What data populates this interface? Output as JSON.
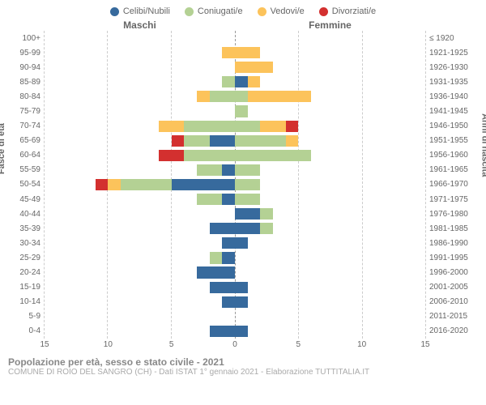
{
  "legend": [
    {
      "label": "Celibi/Nubili",
      "color": "#376a9d"
    },
    {
      "label": "Coniugati/e",
      "color": "#b4d194"
    },
    {
      "label": "Vedovi/e",
      "color": "#fcc35b"
    },
    {
      "label": "Divorziati/e",
      "color": "#d3302f"
    }
  ],
  "header_male": "Maschi",
  "header_female": "Femmine",
  "ylabel_left": "Fasce di età",
  "ylabel_right": "Anni di nascita",
  "age_groups": [
    "100+",
    "95-99",
    "90-94",
    "85-89",
    "80-84",
    "75-79",
    "70-74",
    "65-69",
    "60-64",
    "55-59",
    "50-54",
    "45-49",
    "40-44",
    "35-39",
    "30-34",
    "25-29",
    "20-24",
    "15-19",
    "10-14",
    "5-9",
    "0-4"
  ],
  "birth_years": [
    "≤ 1920",
    "1921-1925",
    "1926-1930",
    "1931-1935",
    "1936-1940",
    "1941-1945",
    "1946-1950",
    "1951-1955",
    "1956-1960",
    "1961-1965",
    "1966-1970",
    "1971-1975",
    "1976-1980",
    "1981-1985",
    "1986-1990",
    "1991-1995",
    "1996-2000",
    "2001-2005",
    "2006-2010",
    "2011-2015",
    "2016-2020"
  ],
  "x_max": 15,
  "x_ticks": [
    15,
    10,
    5,
    0,
    5,
    10,
    15
  ],
  "colors": {
    "celibi": "#376a9d",
    "coniugati": "#b4d194",
    "vedovi": "#fcc35b",
    "divorziati": "#d3302f"
  },
  "data": {
    "male": {
      "100+": {
        "c": 0,
        "m": 0,
        "w": 0,
        "d": 0
      },
      "95-99": {
        "c": 0,
        "m": 0,
        "w": 1,
        "d": 0
      },
      "90-94": {
        "c": 0,
        "m": 0,
        "w": 0,
        "d": 0
      },
      "85-89": {
        "c": 0,
        "m": 1,
        "w": 0,
        "d": 0
      },
      "80-84": {
        "c": 0,
        "m": 2,
        "w": 1,
        "d": 0
      },
      "75-79": {
        "c": 0,
        "m": 0,
        "w": 0,
        "d": 0
      },
      "70-74": {
        "c": 0,
        "m": 4,
        "w": 2,
        "d": 0
      },
      "65-69": {
        "c": 2,
        "m": 2,
        "w": 0,
        "d": 1
      },
      "60-64": {
        "c": 0,
        "m": 4,
        "w": 0,
        "d": 2
      },
      "55-59": {
        "c": 1,
        "m": 2,
        "w": 0,
        "d": 0
      },
      "50-54": {
        "c": 5,
        "m": 4,
        "w": 1,
        "d": 1
      },
      "45-49": {
        "c": 1,
        "m": 2,
        "w": 0,
        "d": 0
      },
      "40-44": {
        "c": 0,
        "m": 0,
        "w": 0,
        "d": 0
      },
      "35-39": {
        "c": 2,
        "m": 0,
        "w": 0,
        "d": 0
      },
      "30-34": {
        "c": 1,
        "m": 0,
        "w": 0,
        "d": 0
      },
      "25-29": {
        "c": 1,
        "m": 1,
        "w": 0,
        "d": 0
      },
      "20-24": {
        "c": 3,
        "m": 0,
        "w": 0,
        "d": 0
      },
      "15-19": {
        "c": 2,
        "m": 0,
        "w": 0,
        "d": 0
      },
      "10-14": {
        "c": 1,
        "m": 0,
        "w": 0,
        "d": 0
      },
      "5-9": {
        "c": 0,
        "m": 0,
        "w": 0,
        "d": 0
      },
      "0-4": {
        "c": 2,
        "m": 0,
        "w": 0,
        "d": 0
      }
    },
    "female": {
      "100+": {
        "c": 0,
        "m": 0,
        "w": 0,
        "d": 0
      },
      "95-99": {
        "c": 0,
        "m": 0,
        "w": 2,
        "d": 0
      },
      "90-94": {
        "c": 0,
        "m": 0,
        "w": 3,
        "d": 0
      },
      "85-89": {
        "c": 1,
        "m": 0,
        "w": 1,
        "d": 0
      },
      "80-84": {
        "c": 0,
        "m": 1,
        "w": 5,
        "d": 0
      },
      "75-79": {
        "c": 0,
        "m": 1,
        "w": 0,
        "d": 0
      },
      "70-74": {
        "c": 0,
        "m": 2,
        "w": 2,
        "d": 1
      },
      "65-69": {
        "c": 0,
        "m": 4,
        "w": 1,
        "d": 0
      },
      "60-64": {
        "c": 0,
        "m": 6,
        "w": 0,
        "d": 0
      },
      "55-59": {
        "c": 0,
        "m": 2,
        "w": 0,
        "d": 0
      },
      "50-54": {
        "c": 0,
        "m": 2,
        "w": 0,
        "d": 0
      },
      "45-49": {
        "c": 0,
        "m": 2,
        "w": 0,
        "d": 0
      },
      "40-44": {
        "c": 2,
        "m": 1,
        "w": 0,
        "d": 0
      },
      "35-39": {
        "c": 2,
        "m": 1,
        "w": 0,
        "d": 0
      },
      "30-34": {
        "c": 1,
        "m": 0,
        "w": 0,
        "d": 0
      },
      "25-29": {
        "c": 0,
        "m": 0,
        "w": 0,
        "d": 0
      },
      "20-24": {
        "c": 0,
        "m": 0,
        "w": 0,
        "d": 0
      },
      "15-19": {
        "c": 1,
        "m": 0,
        "w": 0,
        "d": 0
      },
      "10-14": {
        "c": 1,
        "m": 0,
        "w": 0,
        "d": 0
      },
      "5-9": {
        "c": 0,
        "m": 0,
        "w": 0,
        "d": 0
      },
      "0-4": {
        "c": 1,
        "m": 0,
        "w": 0,
        "d": 0
      }
    }
  },
  "title": "Popolazione per età, sesso e stato civile - 2021",
  "subtitle": "COMUNE DI ROIO DEL SANGRO (CH) - Dati ISTAT 1° gennaio 2021 - Elaborazione TUTTITALIA.IT"
}
